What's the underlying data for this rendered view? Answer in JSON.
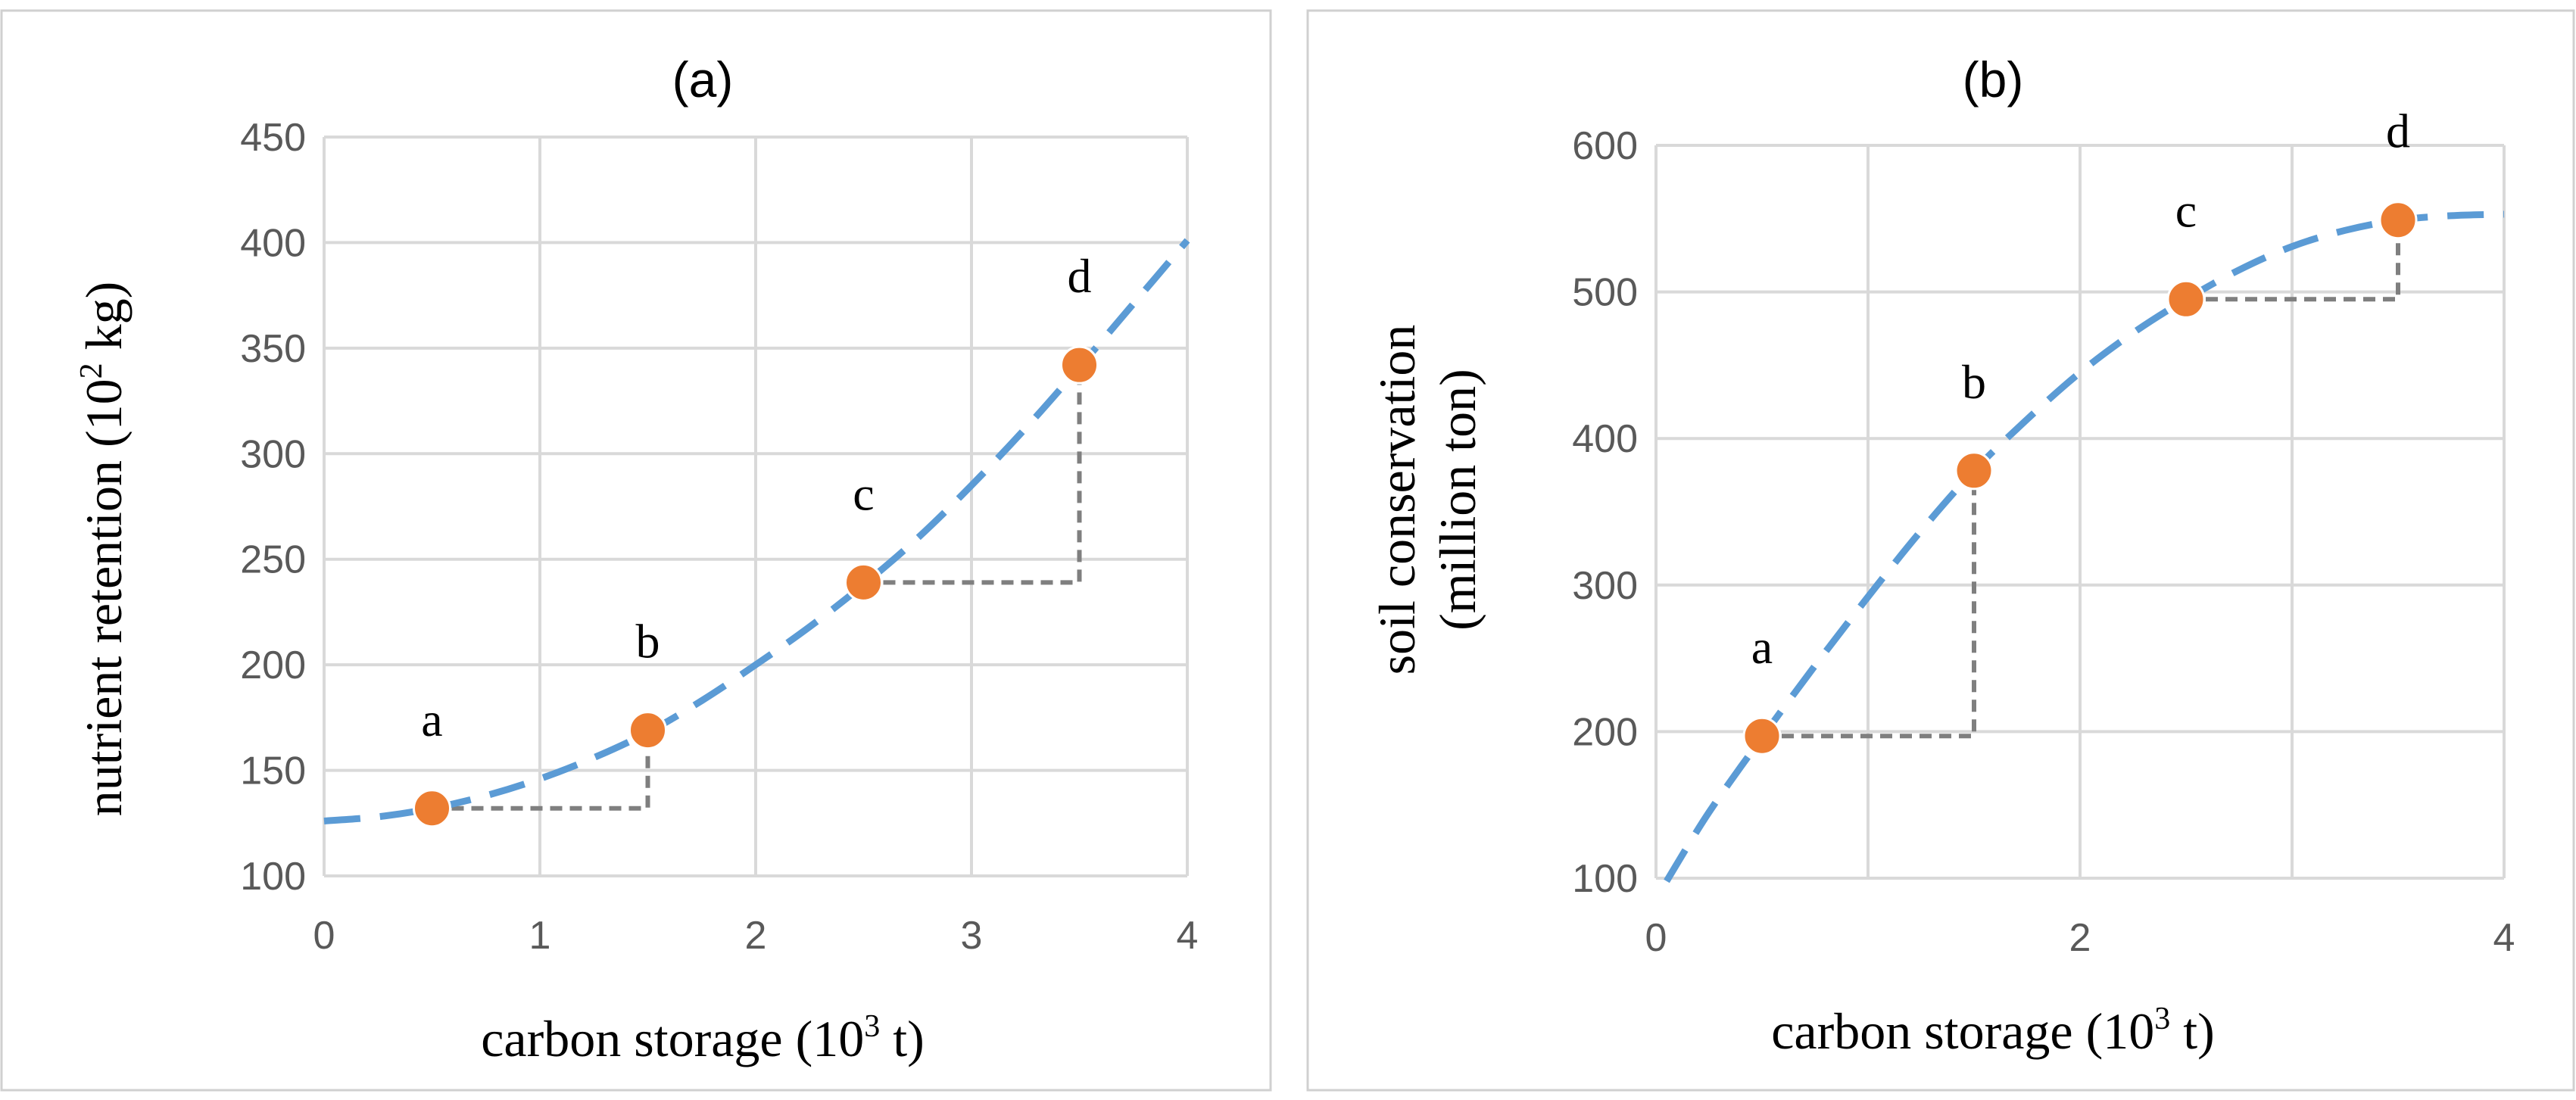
{
  "chart_data": [
    {
      "type": "line",
      "panel": "a",
      "title": "(a)",
      "xlabel": {
        "base": "carbon storage (10",
        "sup": "3",
        "tail": " t)"
      },
      "ylabel": {
        "base": "nutrient retention (10",
        "sup": "2",
        "tail": " kg)"
      },
      "xlim": [
        0,
        4
      ],
      "ylim": [
        100,
        450
      ],
      "xticks": [
        "0",
        "1",
        "2",
        "3",
        "4"
      ],
      "yticks": [
        "100",
        "150",
        "200",
        "250",
        "300",
        "350",
        "400",
        "450"
      ],
      "grid": true,
      "series": [
        {
          "name": "trend",
          "style": "dashed",
          "color": "#5b9bd5",
          "x": [
            0,
            0.25,
            0.5,
            0.75,
            1.0,
            1.25,
            1.5,
            1.75,
            2.0,
            2.25,
            2.5,
            2.75,
            3.0,
            3.25,
            3.5,
            3.75,
            4.0
          ],
          "y": [
            126,
            128,
            132,
            138,
            146,
            156,
            168,
            183,
            200,
            218,
            238,
            260,
            285,
            312,
            341,
            371,
            401
          ]
        },
        {
          "name": "points",
          "style": "marker",
          "color": "#ed7d31",
          "labels": [
            "a",
            "b",
            "c",
            "d"
          ],
          "x": [
            0.5,
            1.5,
            2.5,
            3.5
          ],
          "y": [
            132,
            169,
            239,
            342
          ]
        }
      ],
      "annotations": [
        {
          "type": "step",
          "from": "a",
          "to": "b"
        },
        {
          "type": "step",
          "from": "c",
          "to": "d"
        }
      ]
    },
    {
      "type": "line",
      "panel": "b",
      "title": "(b)",
      "xlabel": {
        "base": "carbon storage (10",
        "sup": "3",
        "tail": " t)"
      },
      "ylabel": {
        "line1": "soil conservation",
        "line2": "(million ton)"
      },
      "xlim": [
        0,
        4
      ],
      "ylim": [
        100,
        600
      ],
      "xticks": [
        "0",
        "2",
        "4"
      ],
      "xtick_values": [
        0,
        2,
        4
      ],
      "yticks": [
        "100",
        "200",
        "300",
        "400",
        "500",
        "600"
      ],
      "grid": true,
      "series": [
        {
          "name": "trend",
          "style": "dashed",
          "color": "#5b9bd5",
          "x": [
            0.05,
            0.25,
            0.5,
            0.75,
            1.0,
            1.25,
            1.5,
            1.75,
            2.0,
            2.25,
            2.5,
            2.75,
            3.0,
            3.25,
            3.5,
            3.75,
            4.0
          ],
          "y": [
            98,
            145,
            196,
            245,
            292,
            337,
            378,
            413,
            445,
            472,
            495,
            515,
            531,
            542,
            549,
            552,
            553
          ]
        },
        {
          "name": "points",
          "style": "marker",
          "color": "#ed7d31",
          "labels": [
            "a",
            "b",
            "c",
            "d"
          ],
          "x": [
            0.5,
            1.5,
            2.5,
            3.5
          ],
          "y": [
            197,
            378,
            495,
            549
          ]
        }
      ],
      "annotations": [
        {
          "type": "step",
          "from": "a",
          "to": "b"
        },
        {
          "type": "step",
          "from": "c",
          "to": "d"
        }
      ]
    }
  ]
}
